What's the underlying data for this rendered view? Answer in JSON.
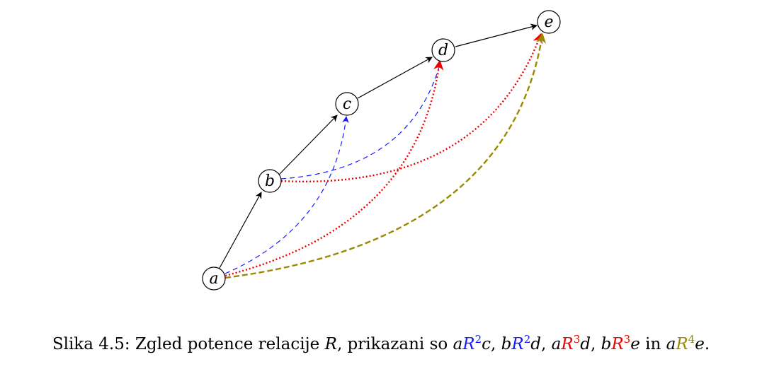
{
  "diagram": {
    "nodes": [
      {
        "id": "a",
        "label": "a"
      },
      {
        "id": "b",
        "label": "b"
      },
      {
        "id": "c",
        "label": "c"
      },
      {
        "id": "d",
        "label": "d"
      },
      {
        "id": "e",
        "label": "e"
      }
    ],
    "edges": [
      {
        "from": "a",
        "to": "b",
        "relation": "R"
      },
      {
        "from": "b",
        "to": "c",
        "relation": "R"
      },
      {
        "from": "c",
        "to": "d",
        "relation": "R"
      },
      {
        "from": "d",
        "to": "e",
        "relation": "R"
      },
      {
        "from": "a",
        "to": "c",
        "relation": "R2"
      },
      {
        "from": "b",
        "to": "d",
        "relation": "R2"
      },
      {
        "from": "a",
        "to": "d",
        "relation": "R3"
      },
      {
        "from": "b",
        "to": "e",
        "relation": "R3"
      },
      {
        "from": "a",
        "to": "e",
        "relation": "R4"
      }
    ],
    "colors": {
      "R": "#000000",
      "R2": "#1a1aff",
      "R3": "#ee0000",
      "R4": "#9a8a00"
    }
  },
  "caption": {
    "prefix": "Slika 4.5: Zgled potence relacije ",
    "relation": "R",
    "middle": ", prikazani so ",
    "items": [
      {
        "left": "a",
        "base": "R",
        "exp": "2",
        "right": "c",
        "sep": ", "
      },
      {
        "left": "b",
        "base": "R",
        "exp": "2",
        "right": "d",
        "sep": ", "
      },
      {
        "left": "a",
        "base": "R",
        "exp": "3",
        "right": "d",
        "sep": ", "
      },
      {
        "left": "b",
        "base": "R",
        "exp": "3",
        "right": "e",
        "sep": ""
      }
    ],
    "conj": " in ",
    "last": {
      "left": "a",
      "base": "R",
      "exp": "4",
      "right": "e"
    },
    "end": "."
  }
}
